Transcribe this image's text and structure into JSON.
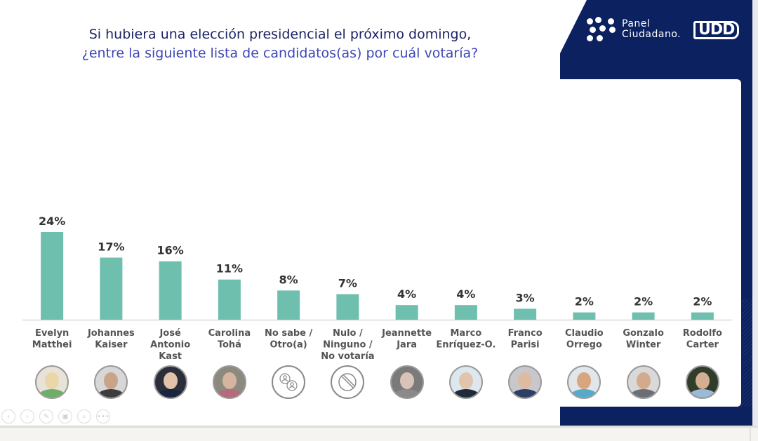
{
  "slide": {
    "title_line1": "Si hubiera una elección presidencial el próximo domingo,",
    "title_line2": "¿entre la siguiente lista de candidatos(as) por cuál votaría?",
    "brand": {
      "panel_line1": "Panel",
      "panel_line2": "Ciudadano.",
      "udd": "UDD"
    },
    "colors": {
      "bar": "#6fbfae",
      "navy": "#0b2160",
      "title_dark": "#1d2465",
      "title_accent": "#3d47b5"
    }
  },
  "chart_data": {
    "type": "bar",
    "title": "Si hubiera una elección presidencial el próximo domingo, ¿entre la siguiente lista de candidatos(as) por cuál votaría?",
    "xlabel": "",
    "ylabel": "",
    "ylim": [
      0,
      24
    ],
    "grid": false,
    "legend": "none",
    "categories": [
      [
        "Evelyn",
        "Matthei"
      ],
      [
        "Johannes",
        "Kaiser"
      ],
      [
        "José",
        "Antonio",
        "Kast"
      ],
      [
        "Carolina",
        "Tohá"
      ],
      [
        "No sabe /",
        "Otro(a)"
      ],
      [
        "Nulo /",
        "Ninguno /",
        "No votaría"
      ],
      [
        "Jeannette",
        "Jara"
      ],
      [
        "Marco",
        "Enríquez-O."
      ],
      [
        "Franco",
        "Parisi"
      ],
      [
        "Claudio",
        "Orrego"
      ],
      [
        "Gonzalo",
        "Winter"
      ],
      [
        "Rodolfo",
        "Carter"
      ]
    ],
    "values": [
      24,
      17,
      16,
      11,
      8,
      7,
      4,
      4,
      3,
      2,
      2,
      2
    ],
    "data_labels": [
      "24%",
      "17%",
      "16%",
      "11%",
      "8%",
      "7%",
      "4%",
      "4%",
      "3%",
      "2%",
      "2%",
      "2%"
    ],
    "avatars": [
      "photo-evelyn-matthei",
      "photo-johannes-kaiser",
      "photo-jose-antonio-kast",
      "photo-carolina-toha",
      "people-target-icon",
      "prohibited-icon",
      "photo-jeannette-jara",
      "photo-marco-enriquez-ominami",
      "photo-franco-parisi",
      "photo-claudio-orrego",
      "photo-gonzalo-winter",
      "photo-rodolfo-carter"
    ]
  },
  "toolbar": {
    "buttons": [
      {
        "name": "previous-slide-button",
        "glyph": "‹"
      },
      {
        "name": "next-slide-button",
        "glyph": "›"
      },
      {
        "name": "pen-button",
        "glyph": "✎"
      },
      {
        "name": "slides-button",
        "glyph": "▣"
      },
      {
        "name": "zoom-button",
        "glyph": "⌕"
      },
      {
        "name": "more-options-button",
        "glyph": "•••"
      }
    ]
  }
}
